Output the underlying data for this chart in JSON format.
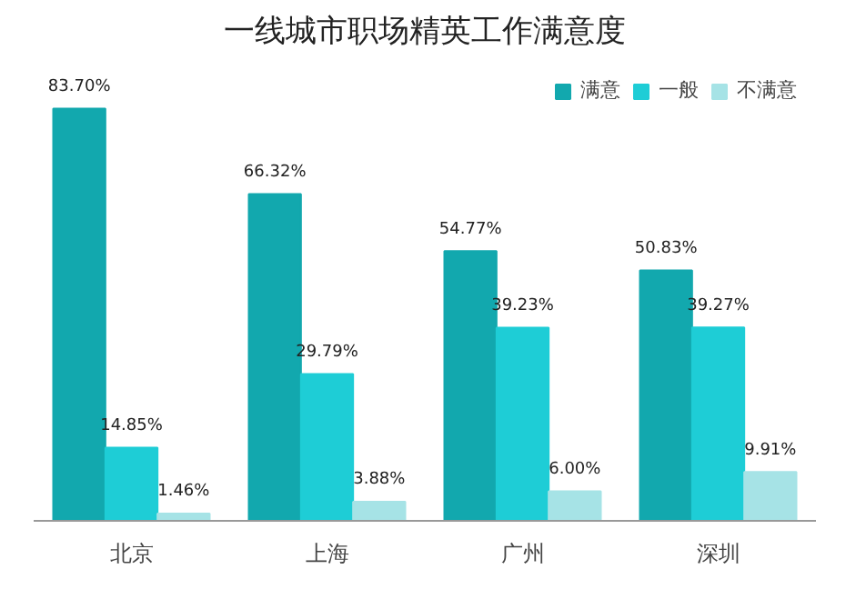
{
  "chart_data": {
    "type": "bar",
    "title": "一线城市职场精英工作满意度",
    "categories": [
      "北京",
      "上海",
      "广州",
      "深圳"
    ],
    "series": [
      {
        "name": "满意",
        "color": "#12a8ae",
        "values": [
          83.7,
          66.32,
          54.77,
          50.83
        ],
        "value_labels": [
          "83.70%",
          "66.32%",
          "54.77%",
          "50.83%"
        ]
      },
      {
        "name": "一般",
        "color": "#1ecdd6",
        "values": [
          14.85,
          29.79,
          39.23,
          39.27
        ],
        "value_labels": [
          "14.85%",
          "29.79%",
          "39.23%",
          "39.27%"
        ]
      },
      {
        "name": "不满意",
        "color": "#a6e3e6",
        "values": [
          1.46,
          3.88,
          6.0,
          9.91
        ],
        "value_labels": [
          "1.46%",
          "3.88%",
          "6.00%",
          "9.91%"
        ]
      }
    ],
    "legend": "top right",
    "grid": false
  }
}
